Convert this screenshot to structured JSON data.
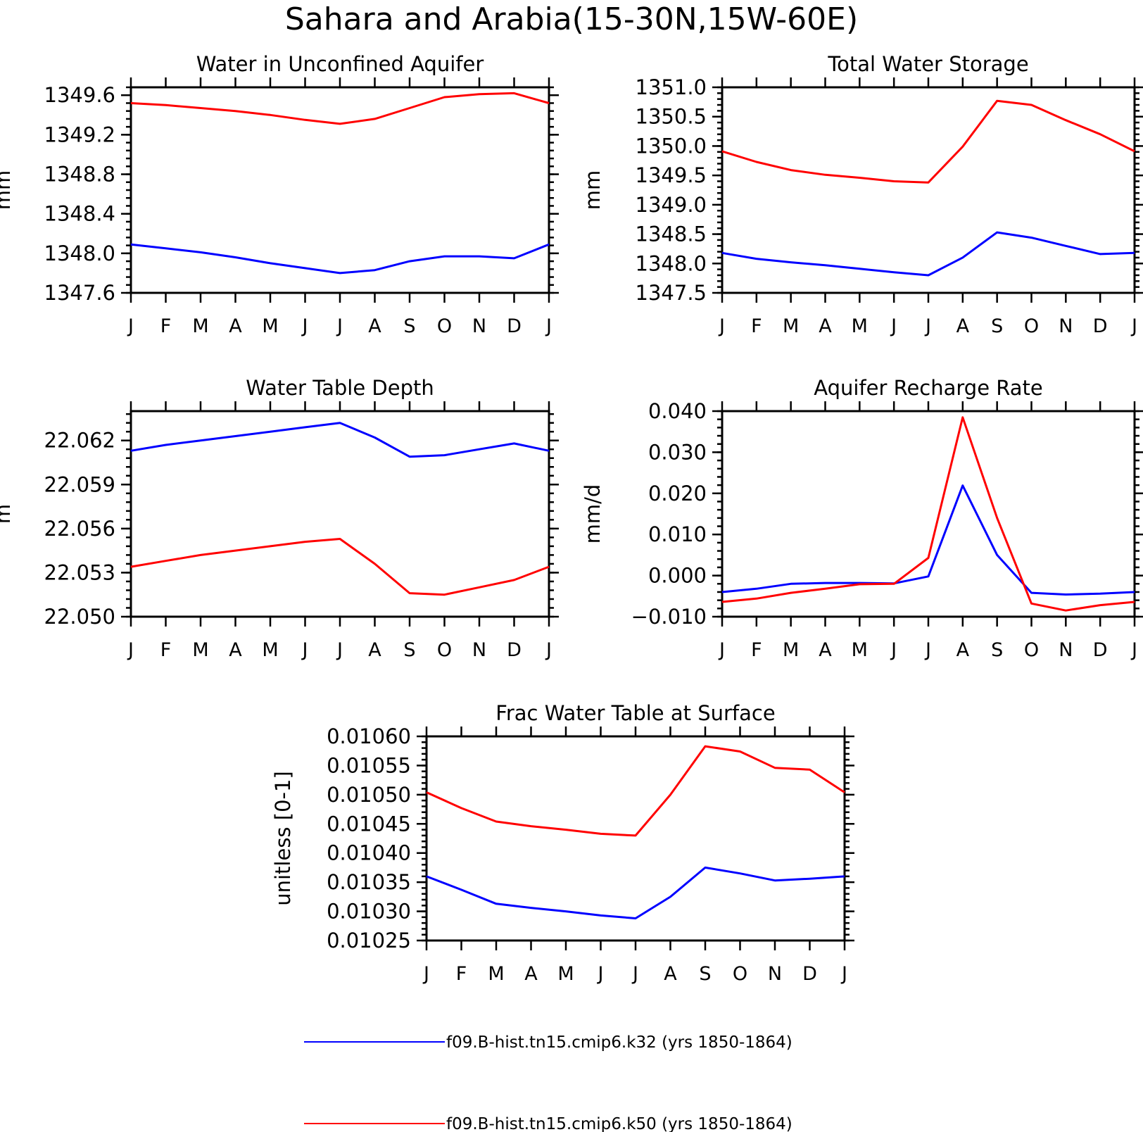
{
  "figure": {
    "title": "Sahara and Arabia(15-30N,15W-60E)"
  },
  "colors": {
    "k32": "#0000ff",
    "k50": "#ff0000"
  },
  "legend": [
    {
      "label": "f09.B-hist.tn15.cmip6.k32 (yrs 1850-1864)",
      "color": "#0000ff"
    },
    {
      "label": "f09.B-hist.tn15.cmip6.k50 (yrs 1850-1864)",
      "color": "#ff0000"
    }
  ],
  "chart_data": [
    {
      "type": "line",
      "title": "Water in Unconfined Aquifer",
      "ylabel": "mm",
      "categories": [
        "J",
        "F",
        "M",
        "A",
        "M",
        "J",
        "J",
        "A",
        "S",
        "O",
        "N",
        "D",
        "J"
      ],
      "ylim": [
        1347.6,
        1349.68
      ],
      "yticks": [
        1347.6,
        1348.0,
        1348.4,
        1348.8,
        1349.2,
        1349.6
      ],
      "ytick_labels": [
        "1347.6",
        "1348.0",
        "1348.4",
        "1348.8",
        "1349.2",
        "1349.6"
      ],
      "series": [
        {
          "color": "#0000ff",
          "values": [
            1348.09,
            1348.05,
            1348.01,
            1347.96,
            1347.9,
            1347.85,
            1347.8,
            1347.83,
            1347.92,
            1347.97,
            1347.97,
            1347.95,
            1348.09
          ]
        },
        {
          "color": "#ff0000",
          "values": [
            1349.52,
            1349.5,
            1349.47,
            1349.44,
            1349.4,
            1349.35,
            1349.31,
            1349.36,
            1349.47,
            1349.58,
            1349.61,
            1349.62,
            1349.52
          ]
        }
      ]
    },
    {
      "type": "line",
      "title": "Total Water Storage",
      "ylabel": "mm",
      "categories": [
        "J",
        "F",
        "M",
        "A",
        "M",
        "J",
        "J",
        "A",
        "S",
        "O",
        "N",
        "D",
        "J"
      ],
      "ylim": [
        1347.5,
        1351.0
      ],
      "yticks": [
        1347.5,
        1348.0,
        1348.5,
        1349.0,
        1349.5,
        1350.0,
        1350.5,
        1351.0
      ],
      "ytick_labels": [
        "1347.5",
        "1348.0",
        "1348.5",
        "1349.0",
        "1349.5",
        "1350.0",
        "1350.5",
        "1351.0"
      ],
      "series": [
        {
          "color": "#0000ff",
          "values": [
            1348.18,
            1348.08,
            1348.02,
            1347.97,
            1347.91,
            1347.85,
            1347.8,
            1348.1,
            1348.53,
            1348.44,
            1348.3,
            1348.16,
            1348.18
          ]
        },
        {
          "color": "#ff0000",
          "values": [
            1349.91,
            1349.73,
            1349.59,
            1349.51,
            1349.46,
            1349.4,
            1349.38,
            1349.99,
            1350.77,
            1350.7,
            1350.44,
            1350.2,
            1349.91
          ]
        }
      ]
    },
    {
      "type": "line",
      "title": "Water Table Depth",
      "ylabel": "m",
      "categories": [
        "J",
        "F",
        "M",
        "A",
        "M",
        "J",
        "J",
        "A",
        "S",
        "O",
        "N",
        "D",
        "J"
      ],
      "ylim": [
        22.05,
        22.064
      ],
      "yticks": [
        22.05,
        22.053,
        22.056,
        22.059,
        22.062
      ],
      "ytick_labels": [
        "22.050",
        "22.053",
        "22.056",
        "22.059",
        "22.062"
      ],
      "series": [
        {
          "color": "#0000ff",
          "values": [
            22.0613,
            22.0617,
            22.062,
            22.0623,
            22.0626,
            22.0629,
            22.0632,
            22.0622,
            22.0609,
            22.061,
            22.0614,
            22.0618,
            22.0613
          ]
        },
        {
          "color": "#ff0000",
          "values": [
            22.0534,
            22.0538,
            22.0542,
            22.0545,
            22.0548,
            22.0551,
            22.0553,
            22.0536,
            22.0516,
            22.0515,
            22.052,
            22.0525,
            22.0534
          ]
        }
      ]
    },
    {
      "type": "line",
      "title": "Aquifer Recharge Rate",
      "ylabel": "mm/d",
      "categories": [
        "J",
        "F",
        "M",
        "A",
        "M",
        "J",
        "J",
        "A",
        "S",
        "O",
        "N",
        "D",
        "J"
      ],
      "ylim": [
        -0.01,
        0.04
      ],
      "yticks": [
        -0.01,
        0.0,
        0.01,
        0.02,
        0.03,
        0.04
      ],
      "ytick_labels": [
        "−0.010",
        "0.000",
        "0.010",
        "0.020",
        "0.030",
        "0.040"
      ],
      "series": [
        {
          "color": "#0000ff",
          "values": [
            -0.004,
            -0.0032,
            -0.002,
            -0.0018,
            -0.0018,
            -0.0019,
            -0.0002,
            0.0219,
            0.005,
            -0.0042,
            -0.0046,
            -0.0044,
            -0.004
          ]
        },
        {
          "color": "#ff0000",
          "values": [
            -0.0064,
            -0.0056,
            -0.0042,
            -0.0032,
            -0.0021,
            -0.002,
            0.0043,
            0.0385,
            0.014,
            -0.0068,
            -0.0085,
            -0.0072,
            -0.0064
          ]
        }
      ]
    },
    {
      "type": "line",
      "title": "Frac Water Table at Surface",
      "ylabel": "unitless [0-1]",
      "categories": [
        "J",
        "F",
        "M",
        "A",
        "M",
        "J",
        "J",
        "A",
        "S",
        "O",
        "N",
        "D",
        "J"
      ],
      "ylim": [
        0.01025,
        0.0106
      ],
      "yticks": [
        0.01025,
        0.0103,
        0.01035,
        0.0104,
        0.01045,
        0.0105,
        0.01055,
        0.0106
      ],
      "ytick_labels": [
        "0.01025",
        "0.01030",
        "0.01035",
        "0.01040",
        "0.01045",
        "0.01050",
        "0.01055",
        "0.01060"
      ],
      "series": [
        {
          "color": "#0000ff",
          "values": [
            0.01036,
            0.010337,
            0.010313,
            0.010306,
            0.0103,
            0.010293,
            0.010288,
            0.010325,
            0.010375,
            0.010365,
            0.010353,
            0.010356,
            0.01036
          ]
        },
        {
          "color": "#ff0000",
          "values": [
            0.010504,
            0.010477,
            0.010454,
            0.010446,
            0.01044,
            0.010433,
            0.01043,
            0.0105,
            0.010583,
            0.010574,
            0.010546,
            0.010543,
            0.010504
          ]
        }
      ]
    }
  ]
}
